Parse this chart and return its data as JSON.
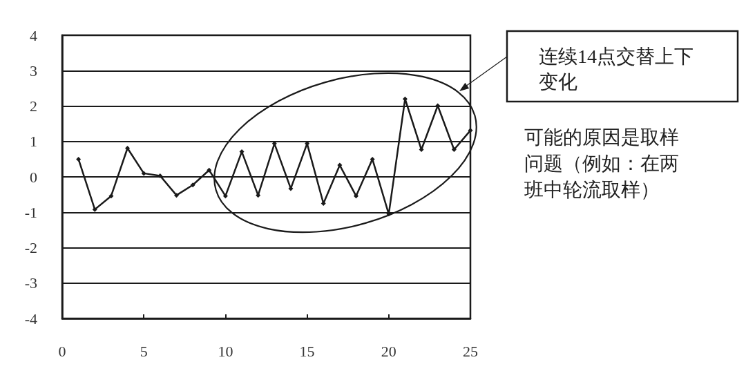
{
  "chart_data": {
    "type": "line",
    "x": [
      1,
      2,
      3,
      4,
      5,
      6,
      7,
      8,
      9,
      10,
      11,
      12,
      13,
      14,
      15,
      16,
      17,
      18,
      19,
      20,
      21,
      22,
      23,
      24,
      25
    ],
    "values": [
      0.5,
      -0.92,
      -0.54,
      0.81,
      0.1,
      0.03,
      -0.52,
      -0.23,
      0.19,
      -0.54,
      0.71,
      -0.52,
      0.94,
      -0.33,
      0.94,
      -0.75,
      0.33,
      -0.54,
      0.5,
      -1.05,
      2.2,
      0.77,
      2.01,
      0.77,
      1.31
    ],
    "color": "#1a1a1a",
    "xlim": [
      0,
      25
    ],
    "xticks": [
      0,
      5,
      10,
      15,
      20,
      25
    ],
    "ylim": [
      -4,
      4
    ],
    "yticks": [
      -4,
      -3,
      -2,
      -1,
      0,
      1,
      2,
      3,
      4
    ],
    "grid": "y",
    "marker": "diamond",
    "line_style": "solid",
    "annotations": [
      "连续14点交替上下变化",
      "可能的原因是取样问题（例如：在两班中轮流取样）"
    ]
  }
}
